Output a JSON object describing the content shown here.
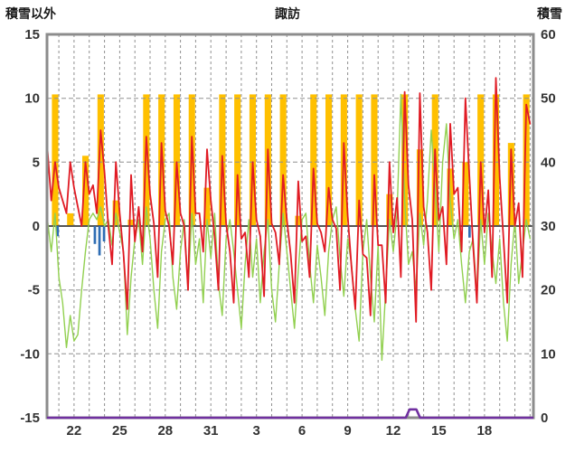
{
  "chart_data": {
    "type": "line",
    "title": "諏訪",
    "left_axis": {
      "label": "積雪以外",
      "min": -15,
      "max": 15,
      "ticks": [
        "15",
        "10",
        "5",
        "0",
        "-5",
        "-10",
        "-15"
      ]
    },
    "right_axis": {
      "label": "積雪",
      "min": 0,
      "max": 60,
      "ticks": [
        "60",
        "50",
        "40",
        "30",
        "20",
        "10",
        "0"
      ]
    },
    "x_axis": {
      "domain": [
        0,
        32
      ],
      "tick_labels": [
        "22",
        "25",
        "28",
        "31",
        "3",
        "6",
        "9",
        "12",
        "15",
        "18"
      ],
      "tick_positions": [
        1.78,
        4.78,
        7.78,
        10.78,
        13.78,
        16.78,
        19.78,
        22.78,
        25.78,
        28.78
      ],
      "grid_start": 0.78,
      "grid_step": 1,
      "grid_count": 32
    },
    "grid": {
      "color": "#909090",
      "zero_line_color": "#555555",
      "frame_color": "#8C8C8C"
    },
    "series": [
      {
        "id": "sunshine-bars",
        "type": "bar_daily",
        "axis": "left",
        "color": "#FFC000",
        "center_start": 0.53,
        "center_step": 1,
        "bar_width_days": 0.42,
        "base": 0,
        "heights": [
          10.3,
          1,
          5.5,
          10.3,
          2,
          0.5,
          10.3,
          10.3,
          10.3,
          10.3,
          3,
          10.3,
          10.3,
          10.3,
          10.3,
          10.3,
          0.8,
          10.3,
          10.3,
          10.3,
          10.3,
          10.3,
          2.5,
          10.3,
          6,
          10.3,
          4.5,
          5,
          10.3,
          10.3,
          6.5,
          10.3
        ]
      },
      {
        "id": "blue-bars",
        "type": "bar_points",
        "axis": "left",
        "color": "#2E6DB4",
        "bar_width_days": 0.16,
        "base": 0,
        "points": [
          [
            0.7,
            -0.8
          ],
          [
            3.15,
            -1.4
          ],
          [
            3.45,
            -2.3
          ],
          [
            3.75,
            -1.2
          ],
          [
            27.8,
            -0.9
          ]
        ]
      },
      {
        "id": "green-line",
        "type": "line_sampled",
        "axis": "left",
        "color": "#92D050",
        "width": 1.4,
        "x_start": 0.03,
        "x_step": 0.25,
        "values": [
          0.5,
          -2,
          1,
          -4,
          -6,
          -9.5,
          -7,
          -9,
          -8.5,
          -5,
          -2,
          0.5,
          1,
          0.5,
          1.5,
          0,
          0.5,
          -1.5,
          1,
          -0.5,
          -2,
          -8.5,
          -4,
          -1,
          0.5,
          -3,
          1.5,
          -1,
          -5,
          -8,
          -2,
          0.5,
          1,
          -4,
          -6.5,
          -2,
          0.5,
          -5,
          1,
          -3,
          -1,
          -6,
          0.5,
          -2.5,
          1,
          -4.5,
          -7,
          -1,
          0.5,
          -2,
          -5,
          -8,
          -3,
          0.5,
          -4,
          -1,
          -6,
          -2,
          0.5,
          -5,
          -7.5,
          -3,
          1,
          -2,
          -5,
          -8,
          -3.5,
          0.5,
          1,
          -3,
          -6,
          -1.5,
          -4,
          -7,
          -2,
          0.5,
          1.5,
          -2.5,
          -5.5,
          -1,
          -3,
          -6.5,
          -9,
          -2,
          0.5,
          -4,
          -7.5,
          -1.5,
          -10.5,
          -5,
          0.5,
          -2,
          1,
          10.3,
          2,
          -3,
          -2,
          -5,
          1,
          -1.5,
          2,
          7.5,
          3,
          -2,
          5,
          8,
          2,
          -1,
          0.5,
          -3,
          -6,
          -2,
          -1,
          -5.5,
          0.5,
          -3,
          1,
          -2,
          -4.5,
          -1,
          -6,
          -9,
          -3,
          0.5,
          -4.5,
          -2,
          0.5,
          -1
        ]
      },
      {
        "id": "temperature-line",
        "type": "line_sampled",
        "axis": "left",
        "color": "#E01B24",
        "width": 1.8,
        "x_start": 0.03,
        "x_step": 0.25,
        "values": [
          6,
          2,
          5,
          3,
          2,
          1,
          5,
          3,
          1.5,
          0,
          5,
          2.5,
          3.2,
          1,
          7.5,
          4.2,
          0,
          -3,
          5,
          1,
          -2.2,
          -6.5,
          4,
          -1.2,
          1.5,
          -2,
          7,
          2.5,
          0.2,
          -4,
          6.5,
          1.2,
          0,
          -3,
          5,
          1,
          0,
          -5,
          7,
          1,
          1,
          -2,
          6,
          2,
          -0.8,
          -5,
          5.5,
          0.2,
          -2,
          -6,
          4,
          -1,
          -0.5,
          -4,
          5,
          0.5,
          -0.8,
          -5.5,
          6,
          0.2,
          -0.5,
          -3,
          4,
          0.5,
          -2.2,
          -6,
          3.5,
          -1.2,
          -0.8,
          -4,
          4.5,
          0.2,
          -0.5,
          -2,
          3,
          0.5,
          -0.2,
          -5,
          6.5,
          0.8,
          -3.2,
          -6.5,
          2,
          -2.2,
          -2.5,
          -7,
          4,
          -1.5,
          -1.5,
          -6,
          5,
          -0.5,
          2.2,
          -4,
          10.5,
          3.2,
          0.5,
          -7.5,
          10.4,
          1.5,
          -0.5,
          -5,
          6,
          0.5,
          1.5,
          -3,
          8,
          2.5,
          3,
          -2,
          10,
          4,
          -1.5,
          -6,
          5,
          -0.5,
          2.8,
          -4,
          11.6,
          3.8,
          -1,
          -6,
          6,
          0,
          1.8,
          -4,
          9.5,
          8
        ]
      },
      {
        "id": "snow-depth-line",
        "type": "line_points",
        "axis": "right",
        "color": "#7030A0",
        "width": 2.6,
        "points": [
          [
            0,
            0
          ],
          [
            23.6,
            0
          ],
          [
            23.85,
            1.3
          ],
          [
            24.3,
            1.3
          ],
          [
            24.55,
            0
          ],
          [
            32,
            0
          ]
        ]
      }
    ]
  }
}
